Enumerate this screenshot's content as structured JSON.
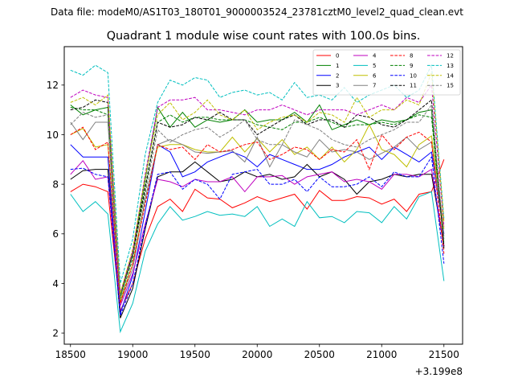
{
  "suptitle": "Data file: modeM0/AS1T03_180T01_9000003524_23781cztM0_level2_quad_clean.evt",
  "chart_data": {
    "type": "line",
    "title": "Quadrant 1 module wise count rates with 100.0s bins.",
    "xlabel": "",
    "ylabel": "",
    "x_offset_label": "+3.199e8",
    "xlim": [
      18450,
      21650
    ],
    "ylim": [
      1.55,
      13.55
    ],
    "xticks": [
      18500,
      19000,
      19500,
      20000,
      20500,
      21000,
      21500
    ],
    "yticks": [
      2,
      4,
      6,
      8,
      10,
      12
    ],
    "legend_position": "top-right",
    "x": [
      18500,
      18600,
      18700,
      18800,
      18900,
      19000,
      19100,
      19200,
      19300,
      19400,
      19500,
      19600,
      19700,
      19800,
      19900,
      20000,
      20100,
      20200,
      20300,
      20400,
      20500,
      20600,
      20700,
      20800,
      20900,
      21000,
      21100,
      21200,
      21300,
      21400,
      21500
    ],
    "series": [
      {
        "name": "0",
        "color": "#ff0000",
        "dash": false,
        "values": [
          7.7,
          8.0,
          7.9,
          7.7,
          2.9,
          4.0,
          5.8,
          7.1,
          7.4,
          6.9,
          7.8,
          7.45,
          7.4,
          7.05,
          7.25,
          7.5,
          7.3,
          7.45,
          7.6,
          7.0,
          7.75,
          7.35,
          7.35,
          7.5,
          7.45,
          7.2,
          7.4,
          6.9,
          7.6,
          7.7,
          9.0
        ]
      },
      {
        "name": "1",
        "color": "#008000",
        "dash": false,
        "values": [
          11.2,
          10.8,
          11.0,
          11.1,
          3.5,
          5.2,
          8.2,
          11.1,
          10.3,
          10.9,
          10.3,
          10.6,
          10.5,
          10.6,
          11.0,
          10.5,
          10.6,
          10.6,
          10.9,
          10.5,
          11.2,
          10.2,
          10.4,
          10.6,
          10.4,
          10.6,
          10.5,
          10.6,
          10.9,
          11.0,
          5.5
        ]
      },
      {
        "name": "2",
        "color": "#0000ff",
        "dash": false,
        "values": [
          9.6,
          9.1,
          9.1,
          9.1,
          2.8,
          4.3,
          6.9,
          9.6,
          9.3,
          8.3,
          8.5,
          8.9,
          9.1,
          9.3,
          9.1,
          8.7,
          9.2,
          9.0,
          8.8,
          8.6,
          8.6,
          8.8,
          9.1,
          9.3,
          9.5,
          9.0,
          9.5,
          9.2,
          8.9,
          9.3,
          6.0
        ]
      },
      {
        "name": "3",
        "color": "#000000",
        "dash": false,
        "values": [
          8.2,
          8.55,
          8.6,
          8.6,
          2.6,
          3.8,
          6.2,
          8.3,
          8.5,
          8.5,
          8.9,
          8.5,
          8.1,
          8.2,
          8.5,
          8.3,
          8.4,
          8.2,
          8.3,
          8.8,
          8.3,
          8.5,
          8.2,
          7.6,
          8.1,
          8.2,
          8.4,
          8.3,
          8.4,
          8.4,
          5.5
        ]
      },
      {
        "name": "4",
        "color": "#bf00bf",
        "dash": false,
        "values": [
          8.4,
          8.95,
          8.2,
          8.3,
          3.1,
          4.4,
          6.4,
          8.2,
          8.1,
          7.9,
          8.2,
          8.1,
          8.1,
          8.3,
          7.7,
          8.3,
          8.3,
          8.35,
          8.0,
          8.3,
          8.4,
          8.5,
          8.1,
          8.2,
          8.1,
          7.8,
          8.4,
          8.4,
          8.3,
          8.6,
          5.5
        ]
      },
      {
        "name": "5",
        "color": "#00bfbf",
        "dash": false,
        "values": [
          7.6,
          6.9,
          7.3,
          6.8,
          2.05,
          3.2,
          5.3,
          6.4,
          7.1,
          6.55,
          6.7,
          6.9,
          6.75,
          6.8,
          6.7,
          7.1,
          6.3,
          6.6,
          6.3,
          7.3,
          6.65,
          6.7,
          6.45,
          6.9,
          6.85,
          6.45,
          7.1,
          6.6,
          7.5,
          7.7,
          4.1
        ]
      },
      {
        "name": "6",
        "color": "#bfbf00",
        "dash": false,
        "values": [
          10.0,
          10.25,
          9.5,
          9.6,
          3.3,
          4.8,
          7.4,
          9.5,
          9.6,
          9.6,
          9.4,
          9.3,
          9.3,
          9.9,
          9.3,
          9.85,
          9.3,
          9.8,
          9.2,
          9.5,
          9.0,
          9.5,
          8.9,
          9.4,
          10.4,
          9.4,
          9.2,
          8.7,
          9.6,
          9.95,
          6.2
        ]
      },
      {
        "name": "7",
        "color": "#808080",
        "dash": false,
        "values": [
          10.5,
          9.8,
          10.5,
          10.5,
          3.2,
          4.6,
          7.4,
          9.6,
          9.8,
          9.6,
          9.3,
          9.25,
          9.3,
          9.35,
          8.9,
          9.9,
          8.7,
          9.6,
          9.3,
          9.1,
          9.8,
          9.3,
          9.4,
          9.3,
          9.0,
          9.25,
          9.5,
          9.9,
          9.4,
          9.7,
          5.9
        ]
      },
      {
        "name": "8",
        "color": "#ff0000",
        "dash": true,
        "values": [
          10.0,
          10.3,
          9.4,
          9.7,
          3.2,
          4.8,
          7.2,
          9.6,
          9.4,
          9.5,
          9.0,
          9.6,
          9.3,
          9.4,
          9.6,
          9.7,
          9.0,
          9.2,
          9.5,
          9.4,
          9.0,
          9.4,
          9.3,
          9.8,
          8.6,
          10.0,
          9.4,
          9.9,
          10.1,
          9.7,
          5.2
        ]
      },
      {
        "name": "9",
        "color": "#008000",
        "dash": true,
        "values": [
          11.1,
          11.0,
          11.0,
          10.8,
          3.4,
          5.0,
          7.8,
          10.5,
          10.8,
          10.5,
          10.7,
          10.7,
          10.6,
          10.6,
          10.6,
          10.4,
          10.3,
          10.2,
          10.5,
          10.5,
          10.7,
          10.5,
          10.3,
          10.4,
          10.4,
          10.5,
          10.4,
          10.6,
          10.8,
          10.7,
          5.6
        ]
      },
      {
        "name": "10",
        "color": "#0000ff",
        "dash": true,
        "values": [
          8.6,
          8.65,
          8.4,
          8.3,
          2.7,
          4.0,
          6.3,
          8.4,
          8.5,
          7.8,
          8.2,
          8.0,
          7.4,
          8.4,
          8.5,
          8.6,
          8.0,
          8.0,
          8.2,
          7.7,
          8.3,
          7.9,
          7.9,
          8.0,
          8.3,
          7.9,
          8.5,
          8.3,
          8.3,
          9.1,
          4.8
        ]
      },
      {
        "name": "11",
        "color": "#000000",
        "dash": true,
        "values": [
          11.0,
          11.1,
          11.4,
          11.3,
          3.6,
          5.2,
          7.9,
          10.5,
          10.3,
          10.4,
          10.7,
          10.6,
          10.9,
          10.6,
          10.6,
          10.0,
          10.3,
          10.6,
          10.8,
          10.4,
          10.6,
          10.6,
          10.3,
          10.8,
          10.7,
          10.4,
          10.3,
          10.6,
          11.0,
          11.4,
          5.4
        ]
      },
      {
        "name": "12",
        "color": "#bf00bf",
        "dash": true,
        "values": [
          11.5,
          11.8,
          11.6,
          11.5,
          3.6,
          5.3,
          8.4,
          11.1,
          11.4,
          11.4,
          11.5,
          11.0,
          11.0,
          10.9,
          10.8,
          11.0,
          11.0,
          11.2,
          11.0,
          10.8,
          11.0,
          11.0,
          11.0,
          10.8,
          11.0,
          11.2,
          11.0,
          11.5,
          11.3,
          12.0,
          6.3
        ]
      },
      {
        "name": "13",
        "color": "#00bfbf",
        "dash": true,
        "values": [
          12.6,
          12.4,
          12.8,
          12.5,
          4.0,
          5.8,
          9.2,
          11.3,
          12.2,
          12.0,
          12.3,
          12.2,
          11.5,
          11.7,
          11.8,
          11.6,
          11.7,
          11.4,
          12.1,
          11.5,
          11.6,
          11.4,
          11.9,
          11.3,
          11.6,
          11.8,
          12.0,
          11.5,
          11.8,
          12.8,
          6.6
        ]
      },
      {
        "name": "14",
        "color": "#bfbf00",
        "dash": true,
        "values": [
          11.3,
          11.5,
          11.2,
          11.6,
          3.6,
          5.4,
          8.3,
          10.8,
          11.3,
          10.6,
          10.9,
          11.4,
          10.8,
          10.6,
          11.0,
          10.2,
          10.5,
          10.7,
          10.8,
          10.5,
          10.9,
          10.8,
          10.5,
          11.5,
          10.7,
          11.0,
          11.0,
          11.4,
          11.2,
          12.5,
          6.5
        ]
      },
      {
        "name": "15",
        "color": "#808080",
        "dash": true,
        "values": [
          10.4,
          10.9,
          10.7,
          10.8,
          3.4,
          5.1,
          7.6,
          10.2,
          9.7,
          10.0,
          10.2,
          10.3,
          9.9,
          10.2,
          10.6,
          9.8,
          9.6,
          9.6,
          10.6,
          10.4,
          10.2,
          9.8,
          9.6,
          9.5,
          9.8,
          10.0,
          10.2,
          10.5,
          10.5,
          11.2,
          5.8
        ]
      }
    ]
  }
}
